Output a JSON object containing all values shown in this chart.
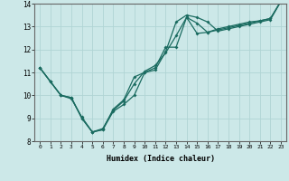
{
  "xlabel": "Humidex (Indice chaleur)",
  "xlim": [
    -0.5,
    23.5
  ],
  "ylim": [
    8,
    14
  ],
  "yticks": [
    8,
    9,
    10,
    11,
    12,
    13,
    14
  ],
  "xticks": [
    0,
    1,
    2,
    3,
    4,
    5,
    6,
    7,
    8,
    9,
    10,
    11,
    12,
    13,
    14,
    15,
    16,
    17,
    18,
    19,
    20,
    21,
    22,
    23
  ],
  "bg_color": "#cce8e8",
  "grid_color": "#b0d4d4",
  "line_color": "#1a6b60",
  "line1": [
    11.2,
    10.6,
    10.0,
    9.9,
    9.0,
    8.4,
    8.5,
    9.3,
    9.6,
    10.0,
    11.0,
    11.1,
    11.9,
    13.2,
    13.5,
    13.4,
    13.2,
    12.8,
    12.9,
    13.0,
    13.1,
    13.2,
    13.3,
    14.1
  ],
  "line2": [
    11.2,
    10.6,
    10.0,
    9.85,
    9.05,
    8.4,
    8.55,
    9.35,
    9.75,
    10.5,
    11.05,
    11.3,
    11.85,
    12.6,
    13.4,
    13.15,
    12.75,
    12.85,
    12.95,
    13.05,
    13.15,
    13.25,
    13.35,
    14.1
  ],
  "line3": [
    11.2,
    10.6,
    10.0,
    9.9,
    9.0,
    8.4,
    8.5,
    9.4,
    9.8,
    10.8,
    11.0,
    11.2,
    12.1,
    12.1,
    13.4,
    12.7,
    12.75,
    12.9,
    13.0,
    13.1,
    13.2,
    13.25,
    13.35,
    14.1
  ]
}
